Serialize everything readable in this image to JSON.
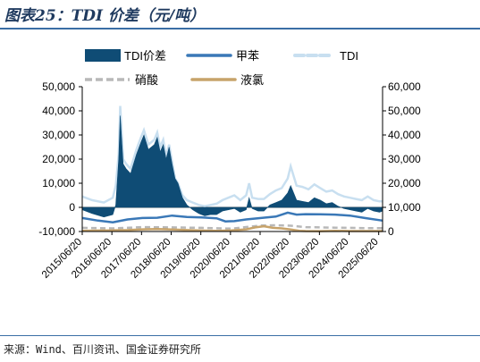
{
  "title": "图表25：TDI 价差（元/吨）",
  "source": "来源：Wind、百川资讯、国金证券研究所",
  "chart_data": {
    "type": "area",
    "x_ticks": [
      "2015/06/20",
      "2016/06/20",
      "2017/06/20",
      "2018/06/20",
      "2019/06/20",
      "2020/06/20",
      "2021/06/20",
      "2022/06/20",
      "2023/06/20",
      "2024/06/20",
      "2025/06/20"
    ],
    "x_range": [
      2015.47,
      2025.6
    ],
    "y_left": {
      "ticks": [
        "50,000",
        "40,000",
        "30,000",
        "20,000",
        "10,000",
        "0",
        "-10,000"
      ],
      "ylim": [
        -10000,
        50000
      ]
    },
    "y_right": {
      "ticks": [
        "60,000",
        "50,000",
        "40,000",
        "30,000",
        "20,000",
        "10,000",
        "0"
      ],
      "ylim": [
        0,
        60000
      ]
    },
    "legend": [
      "TDI价差",
      "甲苯",
      "TDI",
      "硝酸",
      "液氯"
    ],
    "colors": {
      "TDI价差": "#0f4c75",
      "甲苯": "#3a78b7",
      "TDI": "#c8dff0",
      "硝酸": "#b8b8b8",
      "液氯": "#c7a36a"
    },
    "series": [
      {
        "name": "TDI价差",
        "axis": "left",
        "x": [
          2015.47,
          2015.8,
          2016.2,
          2016.5,
          2016.6,
          2016.7,
          2016.75,
          2016.85,
          2016.95,
          2017.1,
          2017.3,
          2017.45,
          2017.55,
          2017.7,
          2017.9,
          2018.0,
          2018.1,
          2018.2,
          2018.3,
          2018.4,
          2018.5,
          2018.6,
          2018.7,
          2018.85,
          2019.0,
          2019.2,
          2019.4,
          2019.6,
          2019.8,
          2020.0,
          2020.2,
          2020.4,
          2020.6,
          2020.8,
          2021.0,
          2021.1,
          2021.2,
          2021.4,
          2021.6,
          2021.8,
          2022.0,
          2022.2,
          2022.4,
          2022.5,
          2022.7,
          2022.9,
          2023.1,
          2023.3,
          2023.5,
          2023.7,
          2023.9,
          2024.1,
          2024.3,
          2024.5,
          2024.7,
          2024.9,
          2025.1,
          2025.3,
          2025.5,
          2025.6
        ],
        "y": [
          -1000,
          -2500,
          -4000,
          -3000,
          1000,
          20000,
          38000,
          18000,
          16000,
          14000,
          22000,
          27000,
          30000,
          24000,
          26000,
          29000,
          23000,
          26000,
          20000,
          25000,
          18000,
          12000,
          10000,
          4000,
          1000,
          -1000,
          -2500,
          -3500,
          -3000,
          -3000,
          -1500,
          -1000,
          -500,
          -2000,
          -1000,
          4000,
          -500,
          -1500,
          -1500,
          1000,
          2000,
          3000,
          6000,
          9000,
          3000,
          2500,
          2000,
          4000,
          3000,
          1500,
          2000,
          500,
          -500,
          -1000,
          -1500,
          -2000,
          -500,
          -1500,
          -2000,
          -1500
        ]
      },
      {
        "name": "甲苯",
        "axis": "right",
        "x": [
          2015.47,
          2016.0,
          2016.5,
          2017.0,
          2017.5,
          2018.0,
          2018.5,
          2019.0,
          2019.5,
          2020.0,
          2020.3,
          2020.6,
          2021.0,
          2021.5,
          2022.0,
          2022.4,
          2022.7,
          2023.0,
          2023.5,
          2024.0,
          2024.5,
          2025.0,
          2025.6
        ],
        "y": [
          5600,
          4500,
          3800,
          5000,
          5600,
          5700,
          6600,
          6000,
          5800,
          5500,
          4200,
          4300,
          5000,
          5600,
          6200,
          7800,
          7000,
          7200,
          7100,
          7000,
          6600,
          5600,
          4500
        ]
      },
      {
        "name": "TDI",
        "axis": "right",
        "x": [
          2015.47,
          2015.8,
          2016.2,
          2016.5,
          2016.6,
          2016.7,
          2016.75,
          2016.85,
          2016.95,
          2017.1,
          2017.3,
          2017.45,
          2017.55,
          2017.7,
          2017.9,
          2018.0,
          2018.1,
          2018.2,
          2018.3,
          2018.4,
          2018.5,
          2018.6,
          2018.7,
          2018.85,
          2019.0,
          2019.2,
          2019.4,
          2019.6,
          2019.8,
          2020.0,
          2020.2,
          2020.4,
          2020.6,
          2020.8,
          2021.0,
          2021.1,
          2021.2,
          2021.4,
          2021.6,
          2021.8,
          2022.0,
          2022.2,
          2022.4,
          2022.5,
          2022.7,
          2022.9,
          2023.1,
          2023.3,
          2023.5,
          2023.7,
          2023.9,
          2024.1,
          2024.3,
          2024.5,
          2024.7,
          2024.9,
          2025.1,
          2025.3,
          2025.5,
          2025.6
        ],
        "y": [
          14500,
          13000,
          12000,
          14000,
          19000,
          32000,
          52000,
          30000,
          28000,
          26000,
          34000,
          39000,
          42000,
          36000,
          38000,
          41000,
          35000,
          38000,
          31000,
          36000,
          29000,
          22000,
          20000,
          15000,
          13000,
          12000,
          11000,
          10500,
          11000,
          11500,
          13000,
          14000,
          15000,
          13000,
          15000,
          20000,
          14000,
          13500,
          13500,
          15500,
          17000,
          18000,
          22000,
          27000,
          19000,
          18500,
          17500,
          19500,
          18000,
          16500,
          17000,
          15500,
          14500,
          14000,
          13500,
          13000,
          14500,
          13000,
          12500,
          12500
        ]
      },
      {
        "name": "硝酸",
        "axis": "right",
        "x": [
          2015.47,
          2016.5,
          2017.5,
          2018.5,
          2019.5,
          2020.5,
          2021.5,
          2022.0,
          2022.5,
          2023.0,
          2023.5,
          2024.0,
          2024.5,
          2025.0,
          2025.6
        ],
        "y": [
          1500,
          1300,
          1800,
          1700,
          1500,
          1200,
          2500,
          2600,
          2400,
          1800,
          1700,
          1600,
          1500,
          1400,
          1400
        ]
      },
      {
        "name": "液氯",
        "axis": "right",
        "x": [
          2015.47,
          2016.0,
          2016.5,
          2017.0,
          2017.5,
          2018.0,
          2018.5,
          2019.0,
          2019.5,
          2020.0,
          2020.5,
          2021.0,
          2021.3,
          2021.6,
          2021.9,
          2022.2,
          2022.5,
          2022.8,
          2023.0,
          2023.5,
          2024.0,
          2024.5,
          2025.0,
          2025.6
        ],
        "y": [
          300,
          400,
          500,
          600,
          900,
          1000,
          800,
          600,
          400,
          300,
          500,
          900,
          1700,
          2200,
          1500,
          1300,
          800,
          300,
          200,
          150,
          300,
          200,
          200,
          200
        ]
      }
    ]
  }
}
